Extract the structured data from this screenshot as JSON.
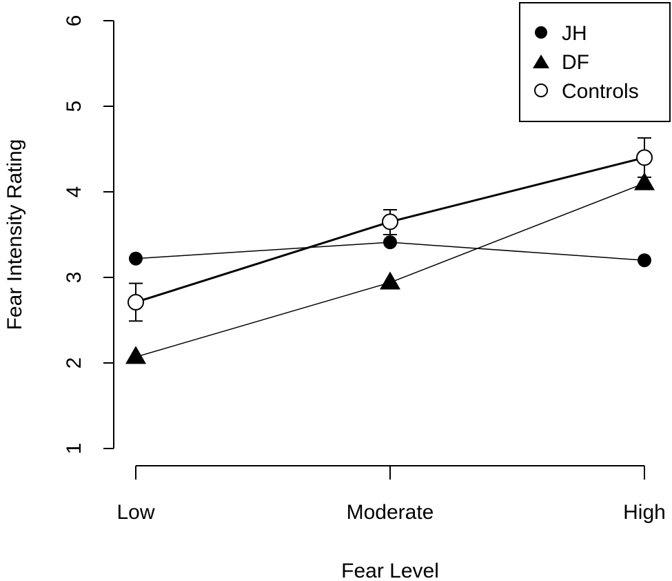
{
  "chart_data": {
    "type": "line",
    "title": "",
    "xlabel": "Fear Level",
    "ylabel": "Fear Intensity Rating",
    "categories": [
      "Low",
      "Moderate",
      "High"
    ],
    "ylim": [
      1,
      6
    ],
    "yticks": [
      "1",
      "2",
      "3",
      "4",
      "5",
      "6"
    ],
    "grid": false,
    "legend_position": "top-right",
    "series": [
      {
        "name": "JH",
        "marker": "filled-circle",
        "values": [
          3.22,
          3.41,
          3.2
        ]
      },
      {
        "name": "DF",
        "marker": "filled-triangle",
        "values": [
          2.07,
          2.94,
          4.1
        ]
      },
      {
        "name": "Controls",
        "marker": "open-circle",
        "values": [
          2.71,
          3.65,
          4.4
        ],
        "error": [
          [
            2.49,
            2.93
          ],
          [
            3.5,
            3.79
          ],
          [
            4.17,
            4.63
          ]
        ]
      }
    ]
  }
}
